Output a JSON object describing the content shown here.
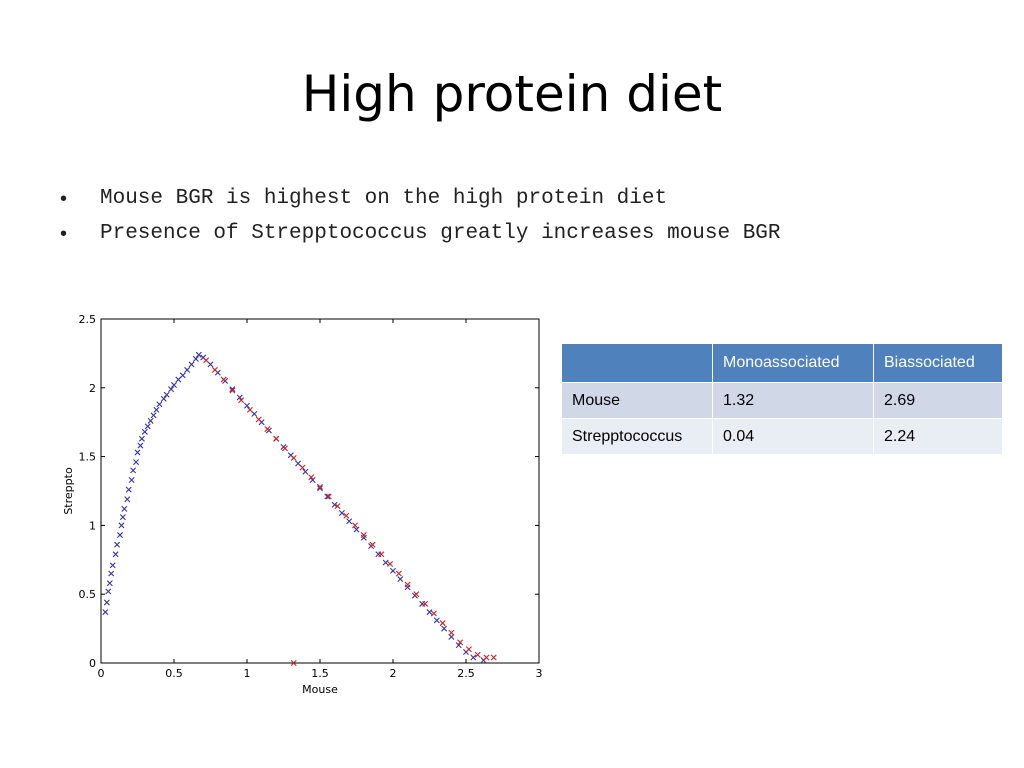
{
  "slide": {
    "title": "High protein diet",
    "bullets": [
      "Mouse BGR is highest on the high protein diet",
      "Presence of Strepptococcus greatly increases mouse BGR"
    ]
  },
  "table": {
    "headers": [
      "",
      "Monoassociated",
      "Biassociated"
    ],
    "rows": [
      [
        "Mouse",
        "1.32",
        "2.69"
      ],
      [
        "Strepptococcus",
        "0.04",
        "2.24"
      ]
    ],
    "colors": {
      "header": "#4f81bd",
      "row_dark": "#d0d8e8",
      "row_light": "#e9edf4"
    }
  },
  "chart_data": {
    "type": "scatter",
    "xlabel": "Mouse",
    "ylabel": "Streppto",
    "xlim": [
      0,
      3
    ],
    "ylim": [
      0,
      2.5
    ],
    "xticks": [
      0,
      0.5,
      1,
      1.5,
      2,
      2.5,
      3
    ],
    "xtick_labels": [
      "0",
      "0.5",
      "1",
      "1.5",
      "2",
      "2.5",
      "3"
    ],
    "yticks": [
      0,
      0.5,
      1,
      1.5,
      2,
      2.5
    ],
    "ytick_labels": [
      "0",
      "0.5",
      "1",
      "1.5",
      "2",
      "2.5"
    ],
    "grid": false,
    "marker": "x",
    "series": [
      {
        "color": "#3333aa",
        "points": [
          [
            0.03,
            0.37
          ],
          [
            0.04,
            0.44
          ],
          [
            0.05,
            0.52
          ],
          [
            0.06,
            0.58
          ],
          [
            0.07,
            0.65
          ],
          [
            0.08,
            0.71
          ],
          [
            0.1,
            0.79
          ],
          [
            0.11,
            0.86
          ],
          [
            0.13,
            0.93
          ],
          [
            0.14,
            1.0
          ],
          [
            0.15,
            1.06
          ],
          [
            0.16,
            1.12
          ],
          [
            0.18,
            1.19
          ],
          [
            0.19,
            1.26
          ],
          [
            0.21,
            1.33
          ],
          [
            0.22,
            1.4
          ],
          [
            0.24,
            1.46
          ],
          [
            0.25,
            1.53
          ],
          [
            0.27,
            1.58
          ],
          [
            0.28,
            1.63
          ],
          [
            0.3,
            1.68
          ],
          [
            0.32,
            1.72
          ],
          [
            0.34,
            1.76
          ],
          [
            0.36,
            1.8
          ],
          [
            0.38,
            1.84
          ],
          [
            0.4,
            1.88
          ],
          [
            0.43,
            1.92
          ],
          [
            0.45,
            1.95
          ],
          [
            0.48,
            1.99
          ],
          [
            0.5,
            2.02
          ],
          [
            0.53,
            2.06
          ],
          [
            0.56,
            2.09
          ],
          [
            0.59,
            2.13
          ],
          [
            0.62,
            2.17
          ],
          [
            0.65,
            2.21
          ],
          [
            0.67,
            2.24
          ],
          [
            0.7,
            2.22
          ],
          [
            0.75,
            2.17
          ],
          [
            0.8,
            2.11
          ],
          [
            0.85,
            2.05
          ],
          [
            0.9,
            1.99
          ],
          [
            0.95,
            1.93
          ],
          [
            1.0,
            1.87
          ],
          [
            1.05,
            1.81
          ],
          [
            1.1,
            1.75
          ],
          [
            1.15,
            1.69
          ],
          [
            1.2,
            1.63
          ],
          [
            1.25,
            1.57
          ],
          [
            1.3,
            1.51
          ],
          [
            1.35,
            1.45
          ],
          [
            1.4,
            1.39
          ],
          [
            1.45,
            1.33
          ],
          [
            1.5,
            1.27
          ],
          [
            1.55,
            1.21
          ],
          [
            1.6,
            1.15
          ],
          [
            1.65,
            1.09
          ],
          [
            1.7,
            1.03
          ],
          [
            1.75,
            0.97
          ],
          [
            1.8,
            0.91
          ],
          [
            1.85,
            0.85
          ],
          [
            1.9,
            0.79
          ],
          [
            1.95,
            0.73
          ],
          [
            2.0,
            0.67
          ],
          [
            2.05,
            0.61
          ],
          [
            2.1,
            0.55
          ],
          [
            2.15,
            0.49
          ],
          [
            2.2,
            0.43
          ],
          [
            2.25,
            0.37
          ],
          [
            2.3,
            0.31
          ],
          [
            2.35,
            0.25
          ],
          [
            2.4,
            0.19
          ],
          [
            2.45,
            0.13
          ],
          [
            2.5,
            0.08
          ],
          [
            2.55,
            0.04
          ],
          [
            2.62,
            0.02
          ]
        ]
      },
      {
        "color": "#cc2222",
        "points": [
          [
            0.72,
            2.2
          ],
          [
            0.78,
            2.13
          ],
          [
            0.84,
            2.06
          ],
          [
            0.9,
            1.98
          ],
          [
            0.96,
            1.91
          ],
          [
            1.02,
            1.84
          ],
          [
            1.08,
            1.77
          ],
          [
            1.14,
            1.7
          ],
          [
            1.2,
            1.63
          ],
          [
            1.26,
            1.56
          ],
          [
            1.32,
            1.49
          ],
          [
            1.38,
            1.42
          ],
          [
            1.44,
            1.35
          ],
          [
            1.5,
            1.28
          ],
          [
            1.56,
            1.21
          ],
          [
            1.62,
            1.14
          ],
          [
            1.68,
            1.07
          ],
          [
            1.74,
            1.0
          ],
          [
            1.8,
            0.93
          ],
          [
            1.86,
            0.86
          ],
          [
            1.92,
            0.79
          ],
          [
            1.98,
            0.72
          ],
          [
            2.04,
            0.65
          ],
          [
            2.1,
            0.57
          ],
          [
            2.16,
            0.5
          ],
          [
            2.22,
            0.43
          ],
          [
            2.28,
            0.36
          ],
          [
            2.34,
            0.29
          ],
          [
            2.4,
            0.22
          ],
          [
            2.46,
            0.15
          ],
          [
            2.52,
            0.1
          ],
          [
            2.58,
            0.06
          ],
          [
            2.64,
            0.04
          ],
          [
            2.69,
            0.04
          ],
          [
            1.32,
            0.0
          ]
        ]
      }
    ]
  }
}
